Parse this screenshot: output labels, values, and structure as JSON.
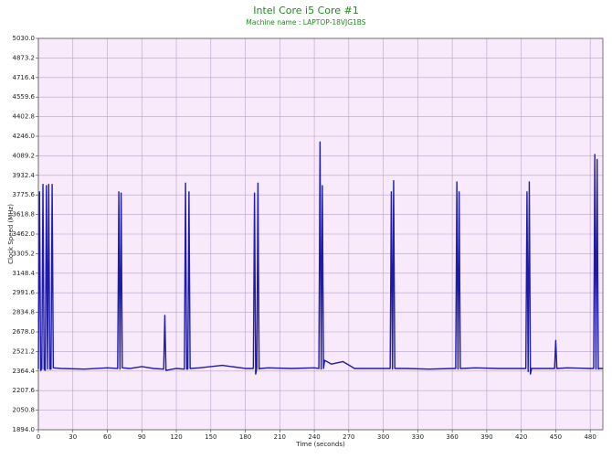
{
  "chart_data": {
    "type": "line",
    "title": "Intel Core i5 Core #1",
    "subtitle": "Machine name : LAPTOP-18VJG1BS",
    "x_label": "Time (seconds)",
    "y_label": "Clock Speed (MHz)",
    "color": "#1c1ca8",
    "grid": true,
    "xlim": [
      0,
      491
    ],
    "ylim": [
      1894,
      5030
    ],
    "xticks": [
      0,
      30,
      60,
      90,
      120,
      150,
      180,
      210,
      240,
      270,
      300,
      330,
      360,
      390,
      420,
      450,
      480
    ],
    "yticks": [
      {
        "value": 1894,
        "label": "1894.0"
      },
      2050.8,
      2207.6,
      2364.4,
      2521.2,
      {
        "value": 2678,
        "label": "2678.0"
      },
      2834.8,
      2991.6,
      3148.4,
      3305.2,
      {
        "value": 3462,
        "label": "3462.0"
      },
      3618.8,
      3775.6,
      3932.4,
      4089.2,
      {
        "value": 4246,
        "label": "4246.0"
      },
      4402.8,
      4559.6,
      4716.4,
      4873.2,
      {
        "value": 5030,
        "label": "5030.0"
      }
    ],
    "x": [
      0,
      1,
      2,
      3,
      4,
      5,
      6,
      7,
      8,
      9,
      10,
      11,
      12,
      13,
      20,
      40,
      60,
      69,
      70,
      71,
      72,
      73,
      80,
      90,
      100,
      109,
      110,
      111,
      120,
      127,
      128,
      129,
      130,
      131,
      132,
      140,
      160,
      180,
      187,
      188,
      189,
      190,
      191,
      192,
      193,
      200,
      220,
      240,
      244,
      245,
      246,
      247,
      248,
      249,
      255,
      265,
      275,
      300,
      306,
      307,
      308,
      309,
      310,
      320,
      340,
      360,
      363,
      364,
      365,
      366,
      367,
      368,
      380,
      400,
      420,
      424,
      425,
      426,
      427,
      428,
      429,
      435,
      449,
      450,
      451,
      460,
      480,
      483,
      484,
      485,
      486,
      487,
      488,
      491
    ],
    "values": [
      2380,
      3800,
      2370,
      2380,
      3860,
      2380,
      2370,
      3850,
      2380,
      3860,
      2380,
      2380,
      3860,
      2390,
      2385,
      2380,
      2390,
      2385,
      3800,
      2380,
      3790,
      2390,
      2385,
      2400,
      2385,
      2380,
      2810,
      2370,
      2385,
      2380,
      3870,
      2380,
      2380,
      3800,
      2385,
      2390,
      2410,
      2385,
      2385,
      3790,
      2340,
      2385,
      3870,
      2380,
      2385,
      2390,
      2385,
      2390,
      2385,
      4200,
      2380,
      3850,
      2385,
      2450,
      2420,
      2440,
      2385,
      2385,
      2385,
      3800,
      2380,
      3890,
      2385,
      2385,
      2380,
      2385,
      2385,
      3880,
      2380,
      3800,
      2385,
      2385,
      2390,
      2385,
      2385,
      2385,
      3800,
      2360,
      3880,
      2340,
      2385,
      2385,
      2385,
      2610,
      2385,
      2390,
      2385,
      2385,
      4100,
      2380,
      4060,
      2380,
      2385,
      2385
    ]
  }
}
